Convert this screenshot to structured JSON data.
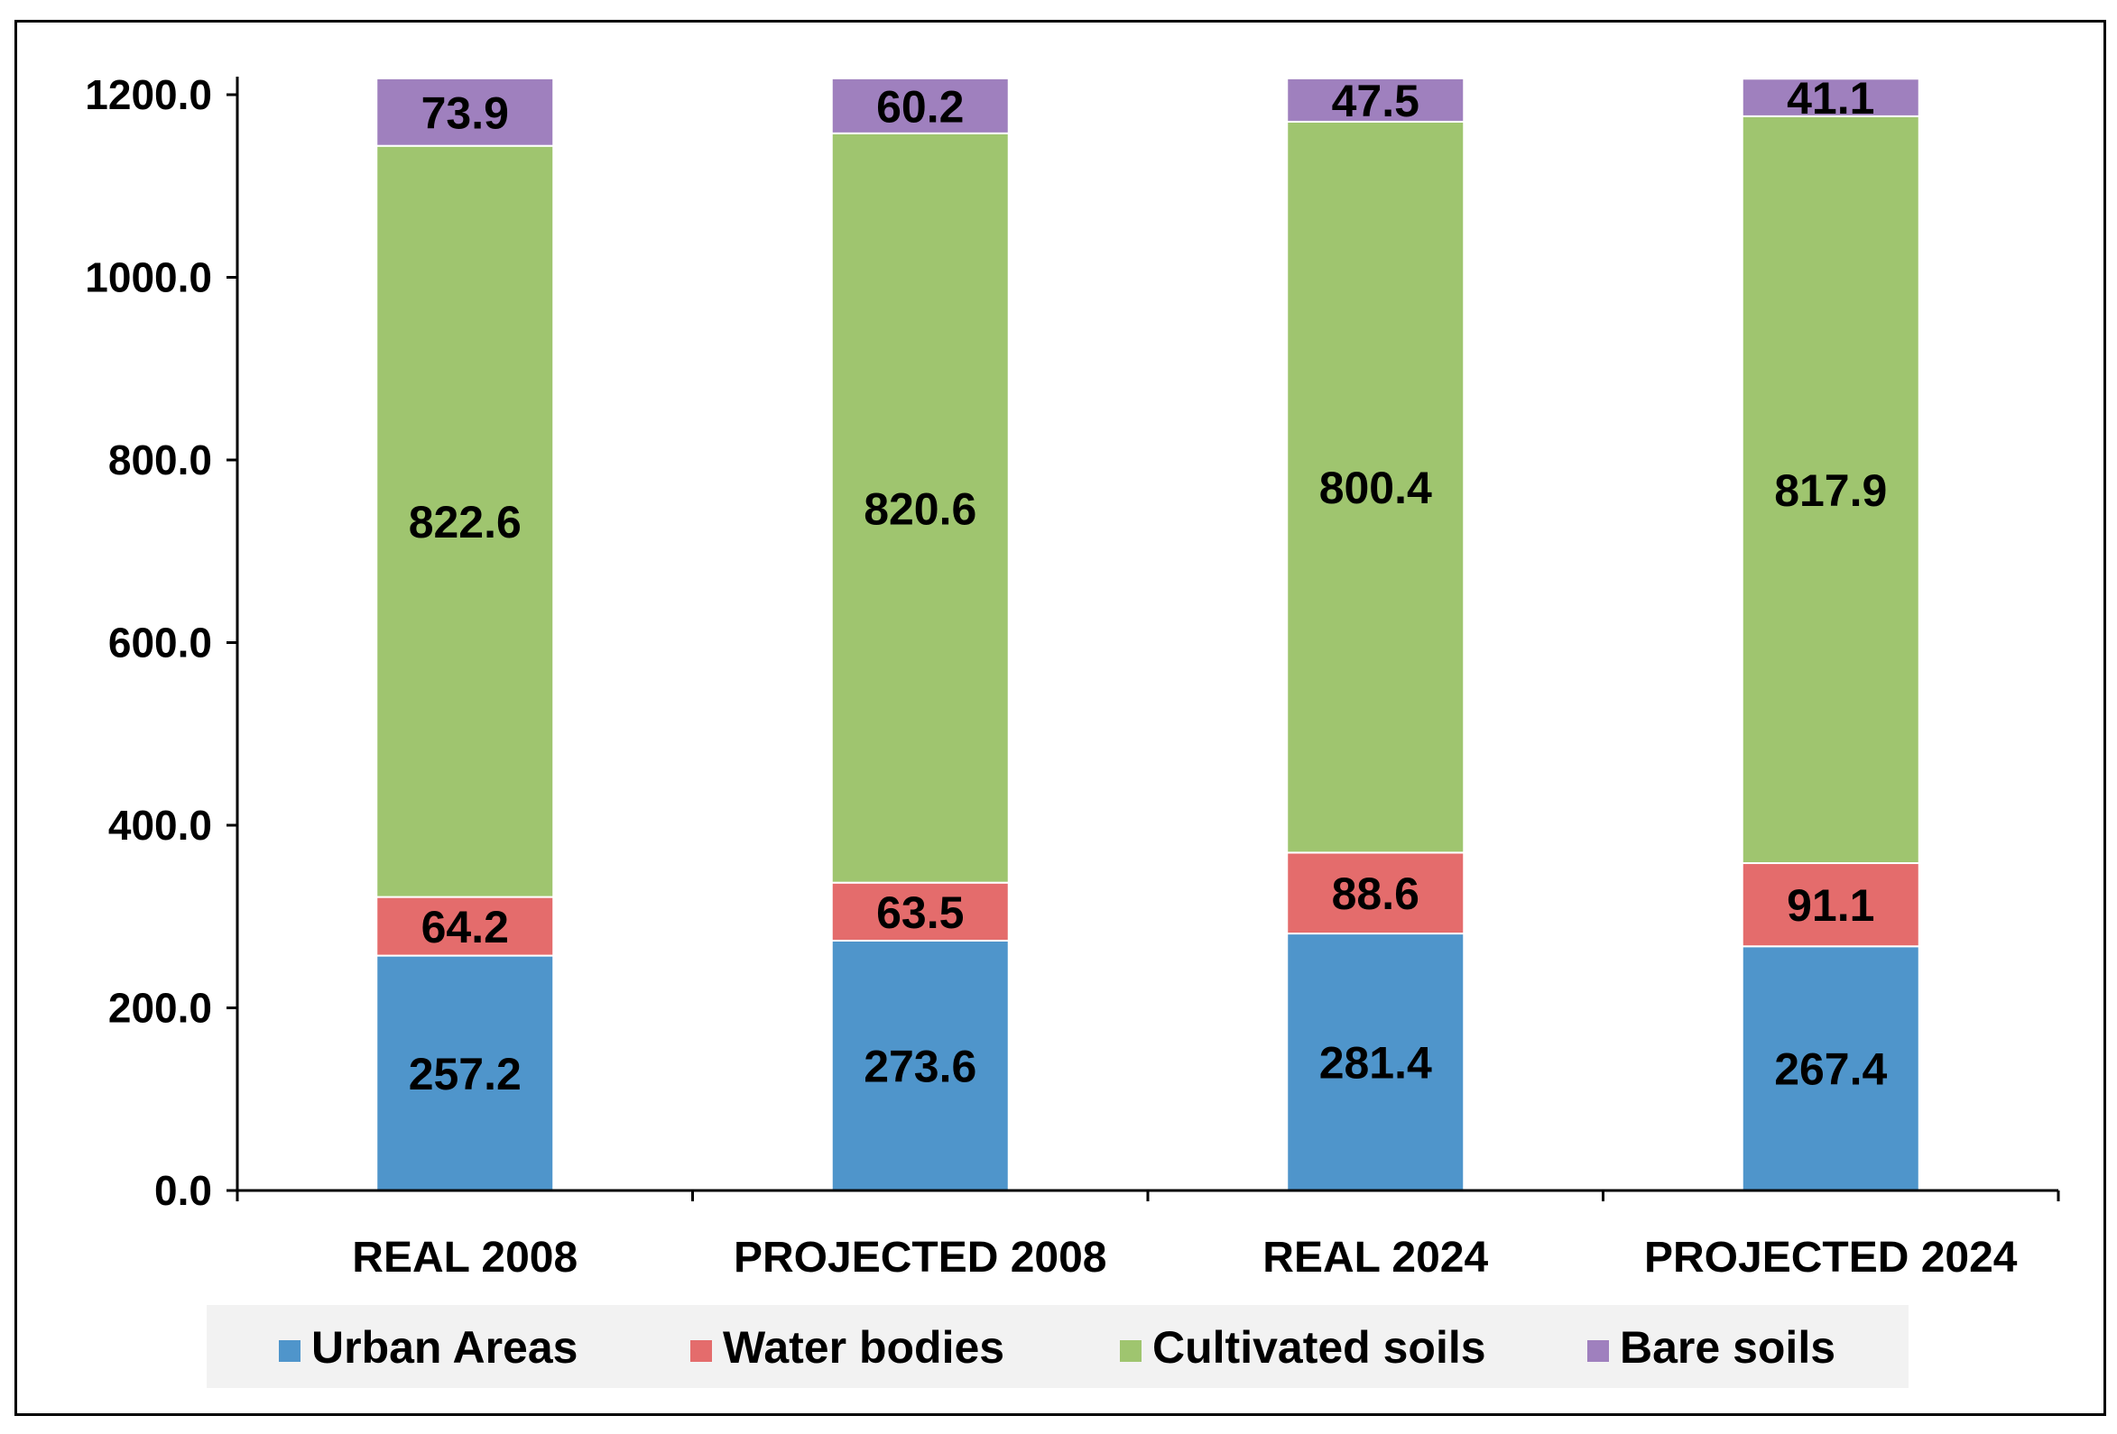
{
  "chart_data": {
    "type": "bar",
    "stacked": true,
    "title": "",
    "xlabel": "",
    "ylabel": "",
    "categories": [
      "REAL 2008",
      "PROJECTED 2008",
      "REAL 2024",
      "PROJECTED 2024"
    ],
    "series": [
      {
        "name": "Urban Areas",
        "color": "#4f95cb",
        "values": [
          257.2,
          273.6,
          281.4,
          267.4
        ]
      },
      {
        "name": "Water bodies",
        "color": "#e46c6c",
        "values": [
          64.2,
          63.5,
          88.6,
          91.1
        ]
      },
      {
        "name": "Cultivated soils",
        "color": "#9fc56f",
        "values": [
          822.6,
          820.6,
          800.4,
          817.9
        ]
      },
      {
        "name": "Bare soils",
        "color": "#9f80be",
        "values": [
          73.9,
          60.2,
          47.5,
          41.1
        ]
      }
    ],
    "data_labels": [
      [
        "257.2",
        "273.6",
        "281.4",
        "267.4"
      ],
      [
        "64.2",
        "63.5",
        "88.6",
        "91.1"
      ],
      [
        "822.6",
        "820.6",
        "800.4",
        "817.9"
      ],
      [
        "73.9",
        "60.2",
        "47.5",
        "41.1"
      ]
    ],
    "ylim": [
      0,
      1200
    ],
    "yticks": [
      "0.0",
      "200.0",
      "400.0",
      "600.0",
      "800.0",
      "1000.0",
      "1200.0"
    ],
    "grid": false,
    "legend_position": "bottom"
  }
}
